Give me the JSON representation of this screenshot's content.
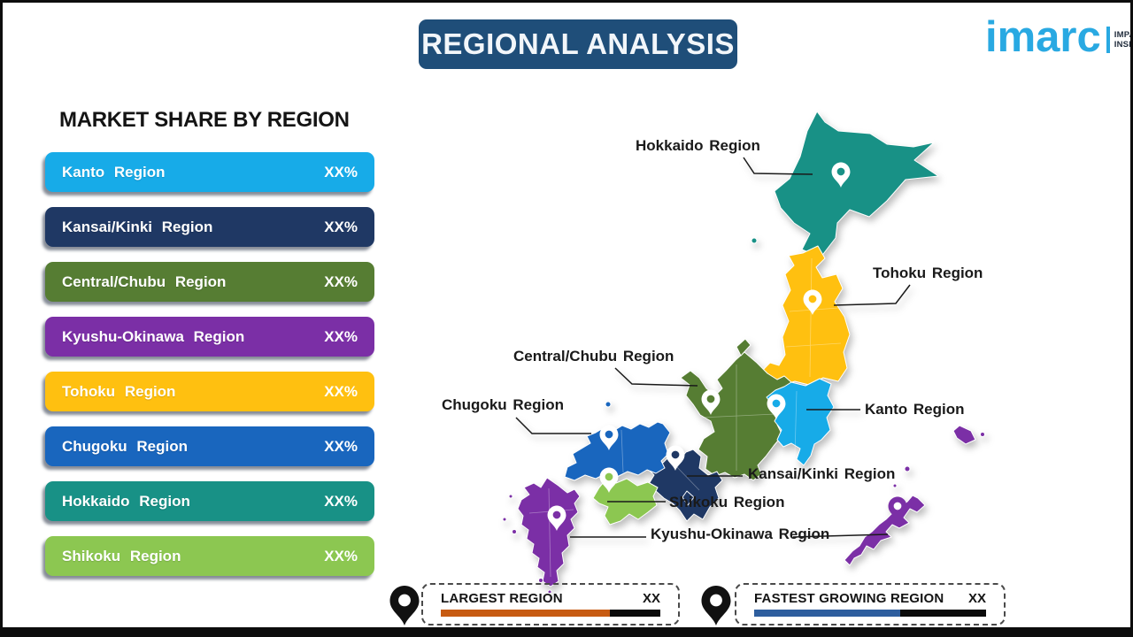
{
  "title": "REGIONAL ANALYSIS",
  "logo": {
    "brand": "imarc",
    "tagline1": "IMPACTFUL",
    "tagline2": "INSIGHTS"
  },
  "colors": {
    "banner_bg": "#1F4E79",
    "brand_blue": "#29A9E2"
  },
  "market_share": {
    "heading": "MARKET SHARE BY REGION",
    "items": [
      {
        "label": "Kanto Region",
        "value": "XX%",
        "color": "#17ABE8"
      },
      {
        "label": "Kansai/Kinki Region",
        "value": "XX%",
        "color": "#1F3864"
      },
      {
        "label": "Central/Chubu Region",
        "value": "XX%",
        "color": "#567D33"
      },
      {
        "label": "Kyushu-Okinawa Region",
        "value": "XX%",
        "color": "#7B2FA6"
      },
      {
        "label": "Tohoku Region",
        "value": "XX%",
        "color": "#FFC010"
      },
      {
        "label": "Chugoku Region",
        "value": "XX%",
        "color": "#1966BE"
      },
      {
        "label": "Hokkaido Region",
        "value": "XX%",
        "color": "#189186"
      },
      {
        "label": "Shikoku Region",
        "value": "XX%",
        "color": "#8CC751"
      }
    ]
  },
  "map": {
    "labels": [
      {
        "id": "hokkaido",
        "text": "Hokkaido Region"
      },
      {
        "id": "tohoku",
        "text": "Tohoku Region"
      },
      {
        "id": "central-chubu",
        "text": "Central/Chubu Region"
      },
      {
        "id": "chugoku",
        "text": "Chugoku Region"
      },
      {
        "id": "kanto",
        "text": "Kanto Region"
      },
      {
        "id": "kansai-kinki",
        "text": "Kansai/Kinki Region"
      },
      {
        "id": "shikoku",
        "text": "Shikoku Region"
      },
      {
        "id": "kyushu-okinawa",
        "text": "Kyushu-Okinawa Region"
      }
    ]
  },
  "legend": {
    "items": [
      {
        "label": "LARGEST REGION",
        "value": "XX",
        "bar_color": "#C75B12",
        "bar_fill": "77%"
      },
      {
        "label": "FASTEST GROWING REGION",
        "value": "XX",
        "bar_color": "#2E5E9E",
        "bar_fill": "63%"
      }
    ]
  }
}
